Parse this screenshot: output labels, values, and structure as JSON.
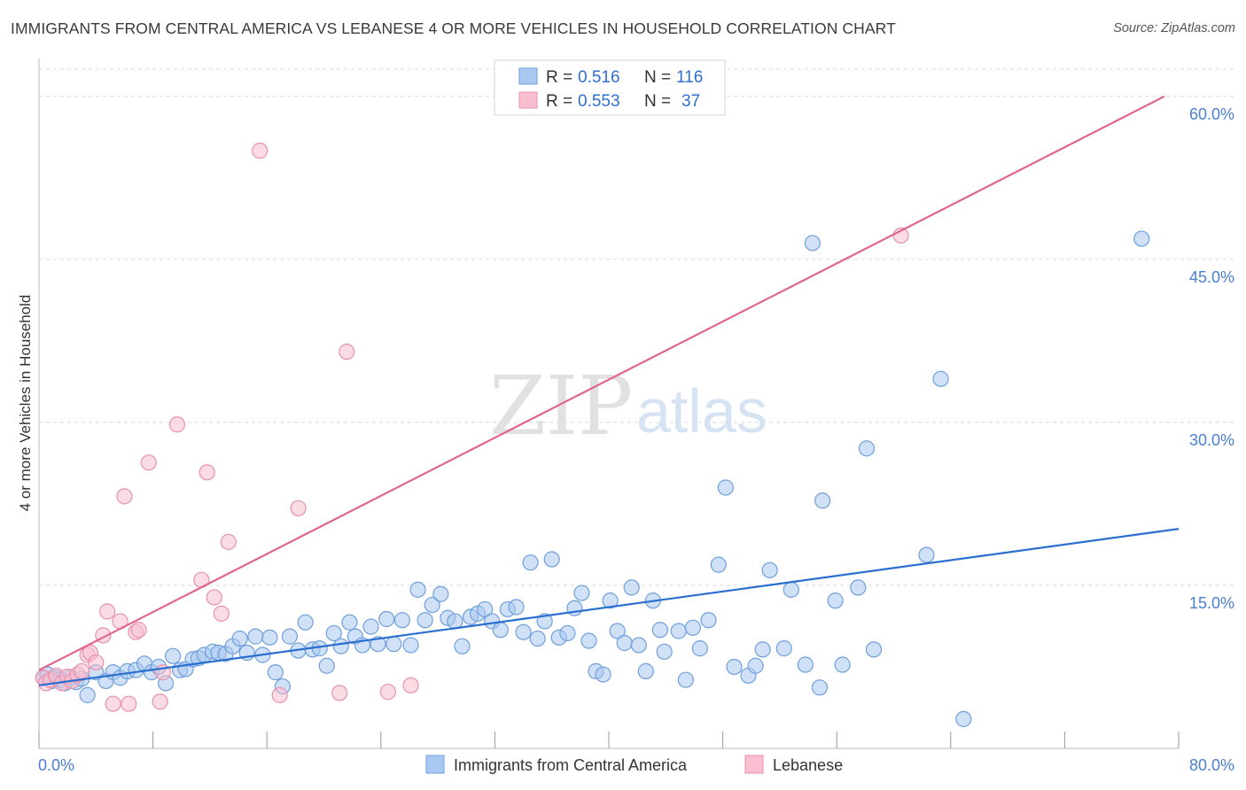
{
  "title": "IMMIGRANTS FROM CENTRAL AMERICA VS LEBANESE 4 OR MORE VEHICLES IN HOUSEHOLD CORRELATION CHART",
  "source": "Source: ZipAtlas.com",
  "watermark": {
    "zip": "ZIP",
    "atlas": "atlas"
  },
  "colors": {
    "blue_fill": "#a9c8f0",
    "blue_stroke": "#6f9fdc",
    "blue_line": "#2a6fd0",
    "pink_fill": "#f7bfd0",
    "pink_stroke": "#e891ad",
    "pink_line": "#e0668f",
    "grid": "#d9d9d9",
    "tick_text": "#4a7fcf"
  },
  "stats": [
    {
      "r_label": "R =",
      "r_value": "0.516",
      "n_label": "N =",
      "n_value": "116"
    },
    {
      "r_label": "R =",
      "r_value": "0.553",
      "n_label": "N =",
      "n_value": "37"
    }
  ],
  "chart_data": {
    "type": "scatter",
    "title": "IMMIGRANTS FROM CENTRAL AMERICA VS LEBANESE 4 OR MORE VEHICLES IN HOUSEHOLD CORRELATION CHART",
    "xlabel": "",
    "ylabel": "4 or more Vehicles in Household",
    "xlim": [
      0,
      80
    ],
    "ylim": [
      0,
      63
    ],
    "x_tick_labels": [
      "0.0%",
      "80.0%"
    ],
    "x_ticks": [
      0,
      8,
      16,
      24,
      32,
      40,
      48,
      56,
      64,
      72,
      80
    ],
    "y_ticks": [
      15,
      30,
      45,
      60
    ],
    "y_tick_labels": [
      "15.0%",
      "30.0%",
      "45.0%",
      "60.0%"
    ],
    "grid": true,
    "legend_position": "bottom-center",
    "series": [
      {
        "name": "Immigrants from Central America",
        "color": "#a9c8f0",
        "trend": [
          [
            0,
            5.8
          ],
          [
            80,
            20.2
          ]
        ],
        "points": [
          [
            0.3,
            6.5
          ],
          [
            0.6,
            6.8
          ],
          [
            0.9,
            6.2
          ],
          [
            1.2,
            6.5
          ],
          [
            1.5,
            6.3
          ],
          [
            1.8,
            6.0
          ],
          [
            2.2,
            6.5
          ],
          [
            2.6,
            6.1
          ],
          [
            3.0,
            6.4
          ],
          [
            3.4,
            4.9
          ],
          [
            4.0,
            7.0
          ],
          [
            4.7,
            6.2
          ],
          [
            5.2,
            7.0
          ],
          [
            5.7,
            6.5
          ],
          [
            6.2,
            7.1
          ],
          [
            6.8,
            7.2
          ],
          [
            7.4,
            7.8
          ],
          [
            7.9,
            7.0
          ],
          [
            8.4,
            7.5
          ],
          [
            8.9,
            6.0
          ],
          [
            9.4,
            8.5
          ],
          [
            9.9,
            7.2
          ],
          [
            10.3,
            7.3
          ],
          [
            10.8,
            8.2
          ],
          [
            11.2,
            8.3
          ],
          [
            11.6,
            8.6
          ],
          [
            12.2,
            8.9
          ],
          [
            12.6,
            8.8
          ],
          [
            13.1,
            8.7
          ],
          [
            13.6,
            9.4
          ],
          [
            14.1,
            10.1
          ],
          [
            14.6,
            8.8
          ],
          [
            15.2,
            10.3
          ],
          [
            15.7,
            8.6
          ],
          [
            16.2,
            10.2
          ],
          [
            16.6,
            7.0
          ],
          [
            17.1,
            5.7
          ],
          [
            17.6,
            10.3
          ],
          [
            18.2,
            9.0
          ],
          [
            18.7,
            11.6
          ],
          [
            19.2,
            9.1
          ],
          [
            19.7,
            9.2
          ],
          [
            20.2,
            7.6
          ],
          [
            20.7,
            10.6
          ],
          [
            21.2,
            9.4
          ],
          [
            21.8,
            11.6
          ],
          [
            22.2,
            10.3
          ],
          [
            22.7,
            9.5
          ],
          [
            23.3,
            11.2
          ],
          [
            23.8,
            9.6
          ],
          [
            24.4,
            11.9
          ],
          [
            24.9,
            9.6
          ],
          [
            25.5,
            11.8
          ],
          [
            26.1,
            9.5
          ],
          [
            26.6,
            14.6
          ],
          [
            27.1,
            11.8
          ],
          [
            27.6,
            13.2
          ],
          [
            28.2,
            14.2
          ],
          [
            28.7,
            12.0
          ],
          [
            29.2,
            11.7
          ],
          [
            29.7,
            9.4
          ],
          [
            30.3,
            12.1
          ],
          [
            30.8,
            12.4
          ],
          [
            31.3,
            12.8
          ],
          [
            31.8,
            11.7
          ],
          [
            32.4,
            10.9
          ],
          [
            32.9,
            12.8
          ],
          [
            33.5,
            13.0
          ],
          [
            34.0,
            10.7
          ],
          [
            34.5,
            17.1
          ],
          [
            35.0,
            10.1
          ],
          [
            35.5,
            11.7
          ],
          [
            36.0,
            17.4
          ],
          [
            36.5,
            10.2
          ],
          [
            37.1,
            10.6
          ],
          [
            37.6,
            12.9
          ],
          [
            38.1,
            14.3
          ],
          [
            38.6,
            9.9
          ],
          [
            39.1,
            7.1
          ],
          [
            39.6,
            6.8
          ],
          [
            40.1,
            13.6
          ],
          [
            40.6,
            10.8
          ],
          [
            41.1,
            9.7
          ],
          [
            41.6,
            14.8
          ],
          [
            42.1,
            9.5
          ],
          [
            42.6,
            7.1
          ],
          [
            43.1,
            13.6
          ],
          [
            43.6,
            10.9
          ],
          [
            43.9,
            8.9
          ],
          [
            44.9,
            10.8
          ],
          [
            45.4,
            6.3
          ],
          [
            45.9,
            11.1
          ],
          [
            46.4,
            9.2
          ],
          [
            47.0,
            11.8
          ],
          [
            47.7,
            16.9
          ],
          [
            48.2,
            24.0
          ],
          [
            48.8,
            7.5
          ],
          [
            49.8,
            6.7
          ],
          [
            50.3,
            7.6
          ],
          [
            50.8,
            9.1
          ],
          [
            51.3,
            16.4
          ],
          [
            52.3,
            9.2
          ],
          [
            52.8,
            14.6
          ],
          [
            53.8,
            7.7
          ],
          [
            54.3,
            46.5
          ],
          [
            54.8,
            5.6
          ],
          [
            55.0,
            22.8
          ],
          [
            55.9,
            13.6
          ],
          [
            56.4,
            7.7
          ],
          [
            57.5,
            14.8
          ],
          [
            58.1,
            27.6
          ],
          [
            58.6,
            9.1
          ],
          [
            62.3,
            17.8
          ],
          [
            63.3,
            34.0
          ],
          [
            64.9,
            2.7
          ],
          [
            77.4,
            46.9
          ]
        ]
      },
      {
        "name": "Lebanese",
        "color": "#f7bfd0",
        "trend": [
          [
            0,
            7.2
          ],
          [
            79,
            60.0
          ]
        ],
        "points": [
          [
            0.3,
            6.5
          ],
          [
            0.5,
            6.0
          ],
          [
            0.8,
            6.3
          ],
          [
            1.2,
            6.7
          ],
          [
            1.6,
            6.0
          ],
          [
            2.0,
            6.6
          ],
          [
            2.3,
            6.2
          ],
          [
            2.7,
            6.8
          ],
          [
            3.0,
            7.1
          ],
          [
            3.4,
            8.6
          ],
          [
            3.6,
            8.8
          ],
          [
            4.0,
            7.9
          ],
          [
            4.5,
            10.4
          ],
          [
            4.8,
            12.6
          ],
          [
            5.2,
            4.1
          ],
          [
            5.7,
            11.7
          ],
          [
            6.0,
            23.2
          ],
          [
            6.3,
            4.1
          ],
          [
            6.8,
            10.7
          ],
          [
            7.0,
            10.9
          ],
          [
            7.7,
            26.3
          ],
          [
            8.5,
            4.3
          ],
          [
            8.7,
            7.0
          ],
          [
            9.7,
            29.8
          ],
          [
            11.4,
            15.5
          ],
          [
            11.8,
            25.4
          ],
          [
            12.3,
            13.9
          ],
          [
            12.8,
            12.4
          ],
          [
            13.3,
            19.0
          ],
          [
            15.5,
            55.0
          ],
          [
            16.9,
            4.9
          ],
          [
            18.2,
            22.1
          ],
          [
            21.1,
            5.1
          ],
          [
            21.6,
            36.5
          ],
          [
            24.5,
            5.2
          ],
          [
            26.1,
            5.8
          ],
          [
            60.5,
            47.2
          ]
        ]
      }
    ]
  },
  "legend": {
    "items": [
      {
        "label": "Immigrants from Central America"
      },
      {
        "label": "Lebanese"
      }
    ]
  }
}
